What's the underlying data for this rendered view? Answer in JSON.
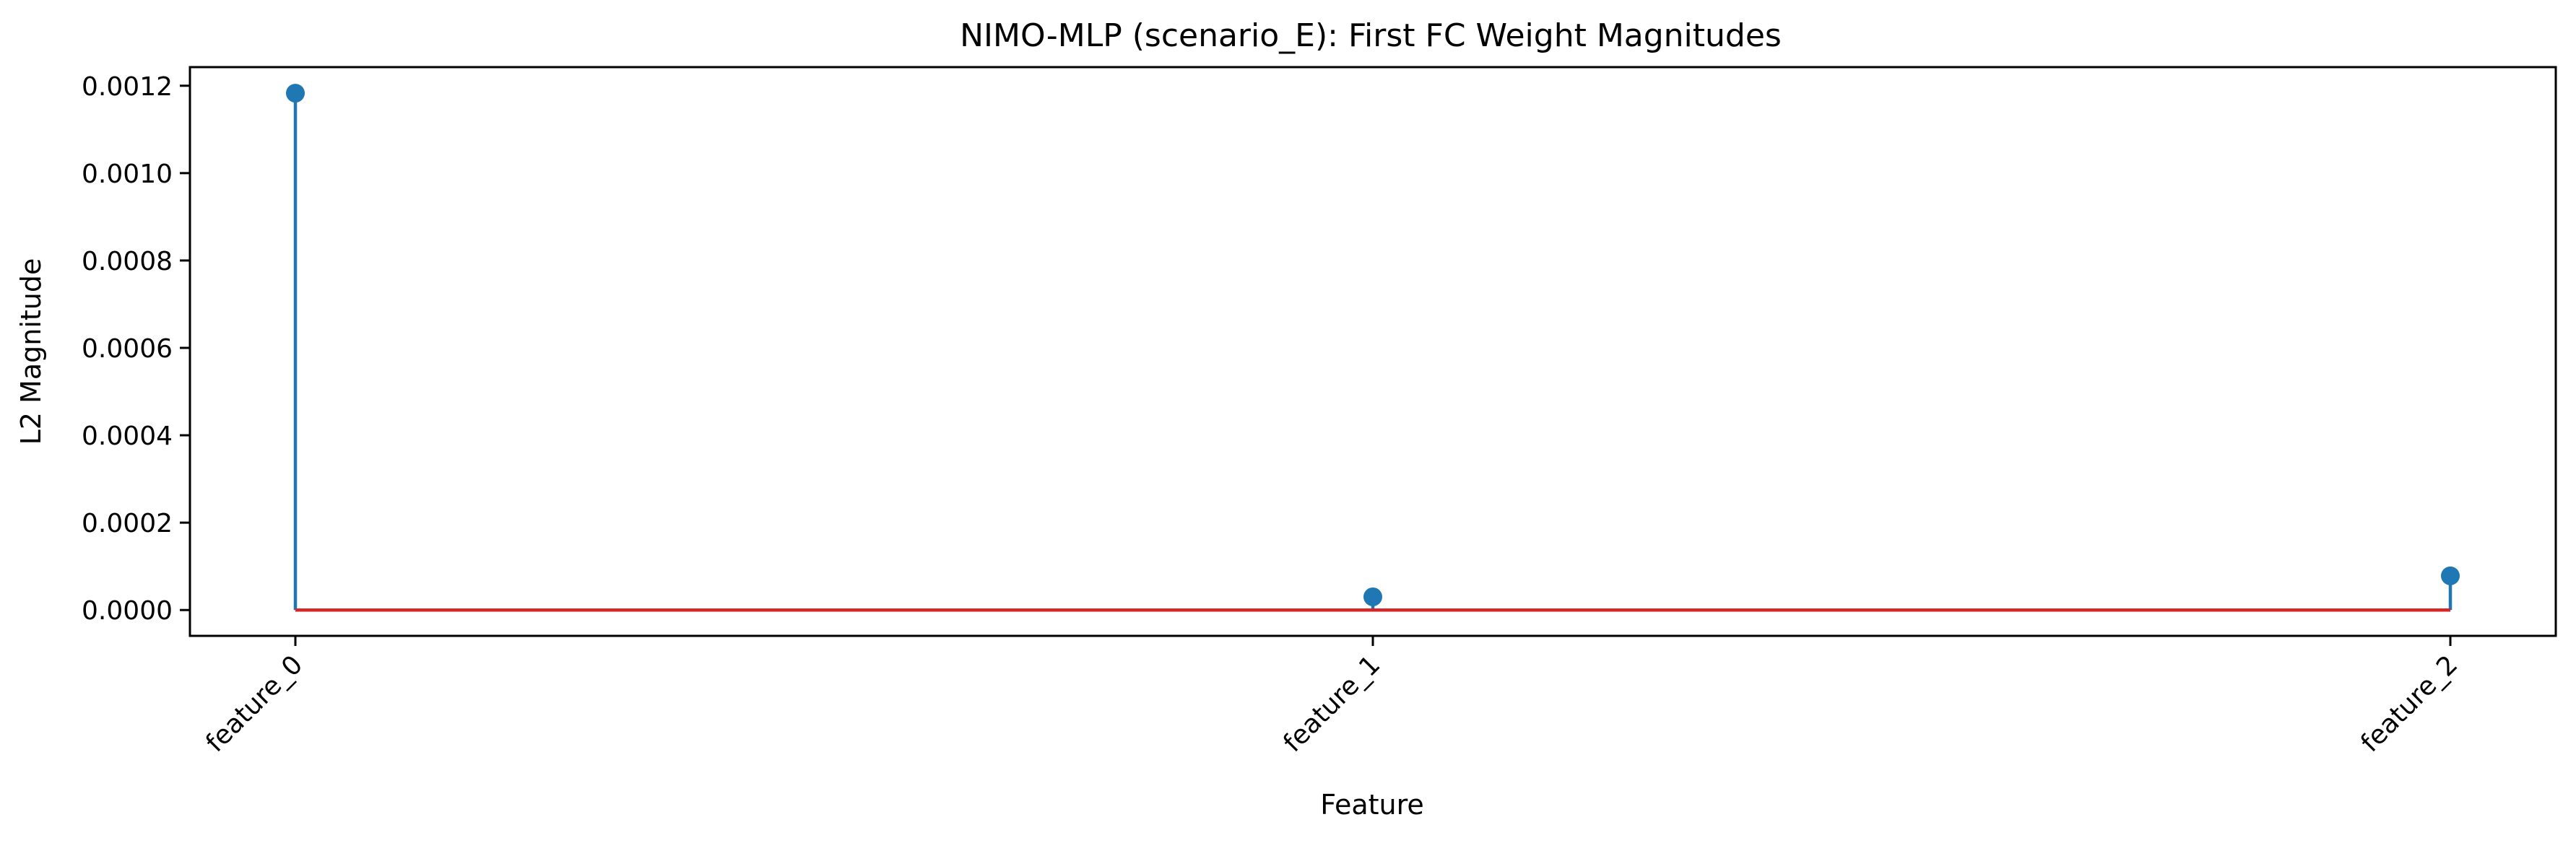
{
  "chart_data": {
    "type": "stem",
    "title": "NIMO-MLP (scenario_E): First FC Weight Magnitudes",
    "xlabel": "Feature",
    "ylabel": "L2 Magnitude",
    "categories": [
      "feature_0",
      "feature_1",
      "feature_2"
    ],
    "values": [
      0.001183,
      3.02e-05,
      7.83e-05
    ],
    "ylim": [
      -5.91e-05,
      0.0012426
    ],
    "yticks": [
      0,
      0.0002,
      0.0004,
      0.0006,
      0.0008,
      0.001,
      0.0012
    ],
    "ytick_labels": [
      "0.0000",
      "0.0002",
      "0.0004",
      "0.0006",
      "0.0008",
      "0.0010",
      "0.0012"
    ],
    "grid": false,
    "colors": {
      "stem": "#1f77b4",
      "marker": "#1f77b4",
      "baseline": "#d62728"
    }
  }
}
